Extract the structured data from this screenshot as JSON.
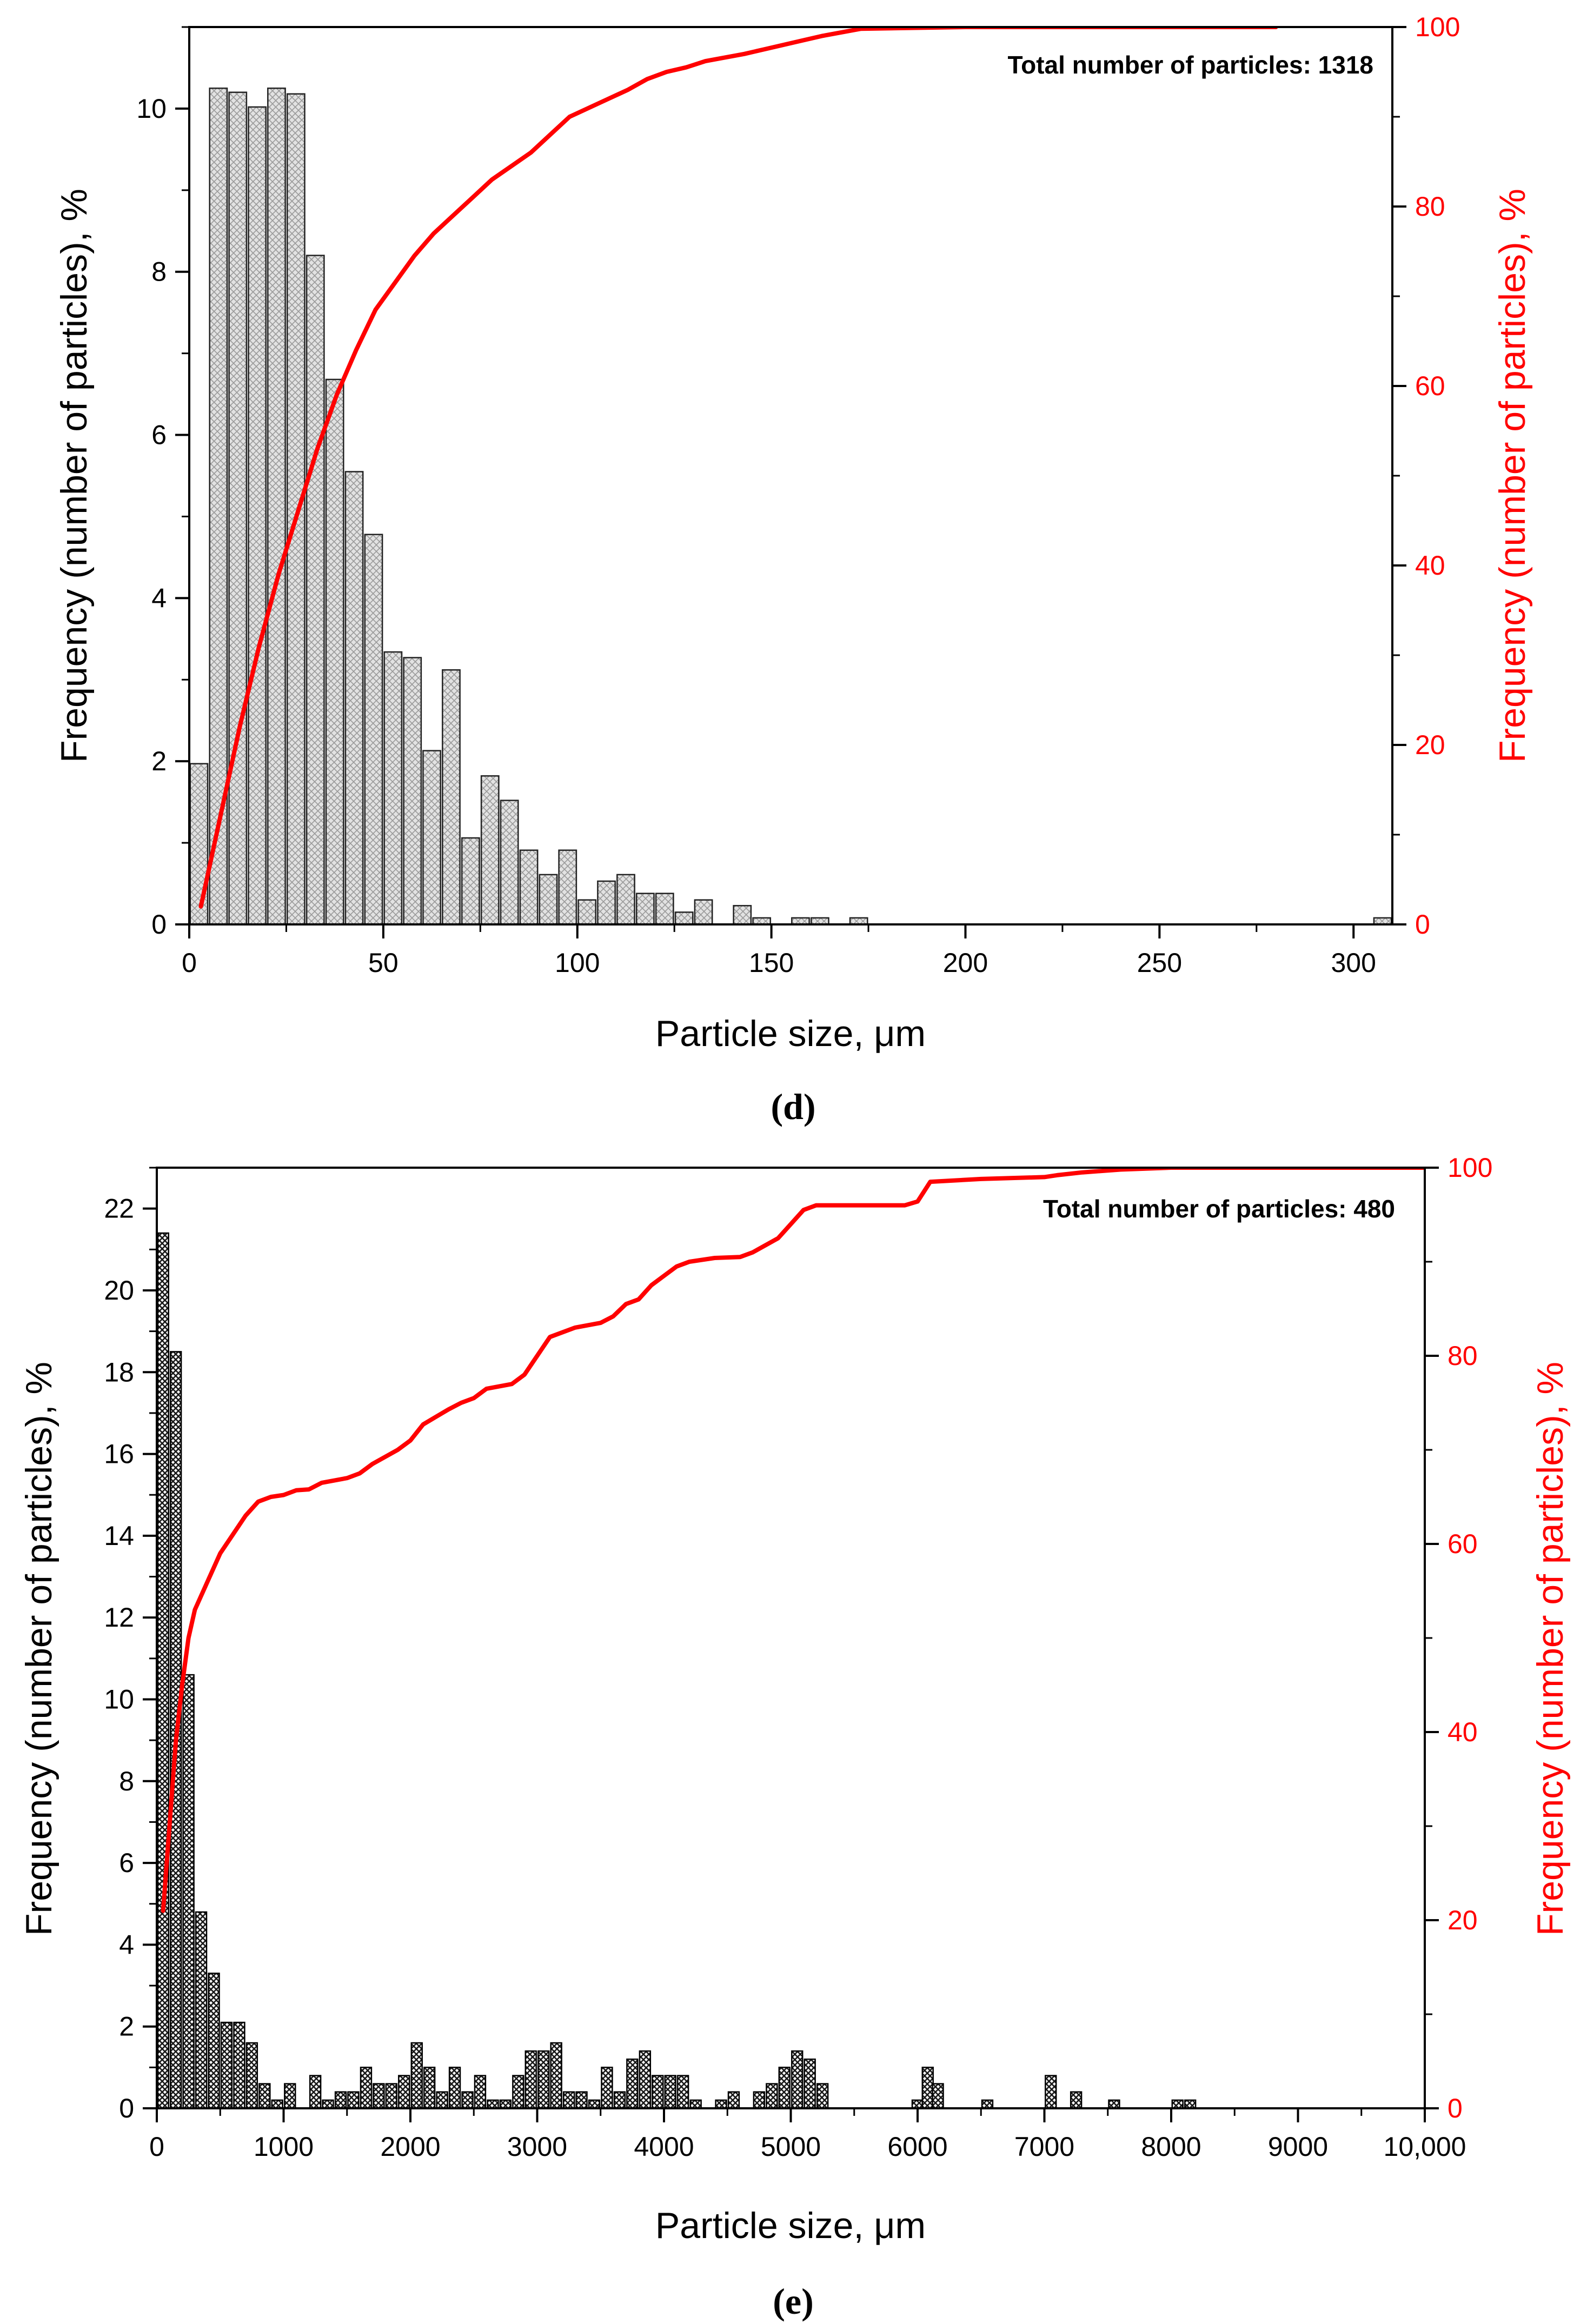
{
  "colors": {
    "cumulative": "#ff0000",
    "axis": "#000000",
    "bar_fill_d": "#d9d9d9",
    "bar_fill_e": "#6a6a6a"
  },
  "chart_data": [
    {
      "type": "bar",
      "panel_label": "(d)",
      "annotation": "Total number of particles: 1318",
      "xlabel": "Particle size, μm",
      "ylabel": "Frequency (number of particles), %",
      "y2label": "Frequency (number of particles), %",
      "xlim": [
        0,
        310
      ],
      "ylim": [
        0,
        11
      ],
      "y2lim": [
        0,
        100
      ],
      "xticks": [
        0,
        50,
        100,
        150,
        200,
        250,
        300
      ],
      "xtick_labels": [
        "0",
        "50",
        "100",
        "150",
        "200",
        "250",
        "300"
      ],
      "yticks": [
        0,
        2,
        4,
        6,
        8,
        10
      ],
      "ytick_labels": [
        "0",
        "2",
        "4",
        "6",
        "8",
        "10"
      ],
      "y2ticks": [
        0,
        20,
        40,
        60,
        80,
        100
      ],
      "y2tick_labels": [
        "0",
        "20",
        "40",
        "60",
        "80",
        "100"
      ],
      "bin_width": 4.5,
      "bins": [
        {
          "x": 2.5,
          "value": 1.97
        },
        {
          "x": 7.5,
          "value": 10.25
        },
        {
          "x": 12.5,
          "value": 10.2
        },
        {
          "x": 17.5,
          "value": 10.02
        },
        {
          "x": 22.5,
          "value": 10.25
        },
        {
          "x": 27.5,
          "value": 10.18
        },
        {
          "x": 32.5,
          "value": 8.2
        },
        {
          "x": 37.5,
          "value": 6.68
        },
        {
          "x": 42.5,
          "value": 5.55
        },
        {
          "x": 47.5,
          "value": 4.78
        },
        {
          "x": 52.5,
          "value": 3.34
        },
        {
          "x": 57.5,
          "value": 3.27
        },
        {
          "x": 62.5,
          "value": 2.13
        },
        {
          "x": 67.5,
          "value": 3.12
        },
        {
          "x": 72.5,
          "value": 1.06
        },
        {
          "x": 77.5,
          "value": 1.82
        },
        {
          "x": 82.5,
          "value": 1.52
        },
        {
          "x": 87.5,
          "value": 0.91
        },
        {
          "x": 92.5,
          "value": 0.61
        },
        {
          "x": 97.5,
          "value": 0.91
        },
        {
          "x": 102.5,
          "value": 0.3
        },
        {
          "x": 107.5,
          "value": 0.53
        },
        {
          "x": 112.5,
          "value": 0.61
        },
        {
          "x": 117.5,
          "value": 0.38
        },
        {
          "x": 122.5,
          "value": 0.38
        },
        {
          "x": 127.5,
          "value": 0.15
        },
        {
          "x": 132.5,
          "value": 0.3
        },
        {
          "x": 142.5,
          "value": 0.23
        },
        {
          "x": 147.5,
          "value": 0.08
        },
        {
          "x": 157.5,
          "value": 0.08
        },
        {
          "x": 162.5,
          "value": 0.08
        },
        {
          "x": 172.5,
          "value": 0.08
        },
        {
          "x": 307.5,
          "value": 0.08
        }
      ],
      "cumulative": {
        "x": [
          3,
          8,
          13,
          18,
          23,
          28,
          33,
          38,
          43,
          48,
          53,
          58,
          63,
          68,
          73,
          78,
          83,
          88,
          93,
          98,
          103,
          108,
          113,
          118,
          123,
          128,
          133,
          143,
          148,
          158,
          163,
          173,
          200,
          240,
          280
        ],
        "values": [
          2,
          12,
          22,
          31,
          39,
          46,
          53,
          59,
          64,
          68.5,
          71.5,
          74.5,
          77,
          79,
          81,
          83,
          84.5,
          86,
          88,
          90,
          91,
          92,
          93,
          94.2,
          95,
          95.5,
          96.2,
          97,
          97.5,
          98.5,
          99,
          99.8,
          100,
          100,
          100
        ]
      }
    },
    {
      "type": "bar",
      "panel_label": "(e)",
      "annotation": "Total number of particles: 480",
      "xlabel": "Particle size, μm",
      "ylabel": "Frequency (number of particles), %",
      "y2label": "Frequency (number of particles), %",
      "xlim": [
        0,
        10000
      ],
      "ylim": [
        0,
        23
      ],
      "y2lim": [
        0,
        100
      ],
      "xticks": [
        0,
        1000,
        2000,
        3000,
        4000,
        5000,
        6000,
        7000,
        8000,
        9000,
        10000
      ],
      "xtick_labels": [
        "0",
        "1000",
        "2000",
        "3000",
        "4000",
        "5000",
        "6000",
        "7000",
        "8000",
        "9000",
        "10,000"
      ],
      "yticks": [
        0,
        2,
        4,
        6,
        8,
        10,
        12,
        14,
        16,
        18,
        20,
        22
      ],
      "ytick_labels": [
        "0",
        "2",
        "4",
        "6",
        "8",
        "10",
        "12",
        "14",
        "16",
        "18",
        "20",
        "22"
      ],
      "y2ticks": [
        0,
        20,
        40,
        60,
        80,
        100
      ],
      "y2tick_labels": [
        "0",
        "20",
        "40",
        "60",
        "80",
        "100"
      ],
      "bin_width": 85,
      "bins": [
        {
          "x": 50,
          "value": 21.4
        },
        {
          "x": 150,
          "value": 18.5
        },
        {
          "x": 250,
          "value": 10.6
        },
        {
          "x": 350,
          "value": 4.8
        },
        {
          "x": 450,
          "value": 3.3
        },
        {
          "x": 550,
          "value": 2.1
        },
        {
          "x": 650,
          "value": 2.1
        },
        {
          "x": 750,
          "value": 1.6
        },
        {
          "x": 850,
          "value": 0.6
        },
        {
          "x": 950,
          "value": 0.2
        },
        {
          "x": 1050,
          "value": 0.6
        },
        {
          "x": 1250,
          "value": 0.8
        },
        {
          "x": 1350,
          "value": 0.2
        },
        {
          "x": 1450,
          "value": 0.4
        },
        {
          "x": 1550,
          "value": 0.4
        },
        {
          "x": 1650,
          "value": 1.0
        },
        {
          "x": 1750,
          "value": 0.6
        },
        {
          "x": 1850,
          "value": 0.6
        },
        {
          "x": 1950,
          "value": 0.8
        },
        {
          "x": 2050,
          "value": 1.6
        },
        {
          "x": 2150,
          "value": 1.0
        },
        {
          "x": 2250,
          "value": 0.4
        },
        {
          "x": 2350,
          "value": 1.0
        },
        {
          "x": 2450,
          "value": 0.4
        },
        {
          "x": 2550,
          "value": 0.8
        },
        {
          "x": 2650,
          "value": 0.2
        },
        {
          "x": 2750,
          "value": 0.2
        },
        {
          "x": 2850,
          "value": 0.8
        },
        {
          "x": 2950,
          "value": 1.4
        },
        {
          "x": 3050,
          "value": 1.4
        },
        {
          "x": 3150,
          "value": 1.6
        },
        {
          "x": 3250,
          "value": 0.4
        },
        {
          "x": 3350,
          "value": 0.4
        },
        {
          "x": 3450,
          "value": 0.2
        },
        {
          "x": 3550,
          "value": 1.0
        },
        {
          "x": 3650,
          "value": 0.4
        },
        {
          "x": 3750,
          "value": 1.2
        },
        {
          "x": 3850,
          "value": 1.4
        },
        {
          "x": 3950,
          "value": 0.8
        },
        {
          "x": 4050,
          "value": 0.8
        },
        {
          "x": 4150,
          "value": 0.8
        },
        {
          "x": 4250,
          "value": 0.2
        },
        {
          "x": 4450,
          "value": 0.2
        },
        {
          "x": 4550,
          "value": 0.4
        },
        {
          "x": 4750,
          "value": 0.4
        },
        {
          "x": 4850,
          "value": 0.6
        },
        {
          "x": 4950,
          "value": 1.0
        },
        {
          "x": 5050,
          "value": 1.4
        },
        {
          "x": 5150,
          "value": 1.2
        },
        {
          "x": 5250,
          "value": 0.6
        },
        {
          "x": 6000,
          "value": 0.2
        },
        {
          "x": 6080,
          "value": 1.0
        },
        {
          "x": 6160,
          "value": 0.6
        },
        {
          "x": 6550,
          "value": 0.2
        },
        {
          "x": 7050,
          "value": 0.8
        },
        {
          "x": 7250,
          "value": 0.4
        },
        {
          "x": 7550,
          "value": 0.2
        },
        {
          "x": 8050,
          "value": 0.2
        },
        {
          "x": 8150,
          "value": 0.2
        }
      ],
      "cumulative": {
        "x": [
          50,
          100,
          150,
          200,
          250,
          300,
          400,
          500,
          600,
          700,
          800,
          900,
          1000,
          1100,
          1200,
          1300,
          1500,
          1600,
          1700,
          1900,
          2000,
          2100,
          2200,
          2300,
          2400,
          2500,
          2600,
          2800,
          2900,
          3000,
          3100,
          3300,
          3500,
          3600,
          3700,
          3800,
          3900,
          4000,
          4100,
          4200,
          4400,
          4600,
          4700,
          4900,
          5000,
          5100,
          5200,
          5500,
          5900,
          6000,
          6100,
          6500,
          7000,
          7100,
          7300,
          7600,
          8000,
          8200,
          9000,
          10000
        ],
        "values": [
          21,
          30,
          39,
          45,
          50,
          53,
          56,
          59,
          61,
          63,
          64.5,
          65,
          65.2,
          65.7,
          65.8,
          66.5,
          67,
          67.5,
          68.5,
          70,
          71,
          72.7,
          73.5,
          74.3,
          75,
          75.5,
          76.5,
          77,
          78,
          80,
          82,
          83,
          83.5,
          84.2,
          85.5,
          86,
          87.5,
          88.5,
          89.5,
          90,
          90.4,
          90.5,
          91,
          92.5,
          94,
          95.5,
          96,
          96,
          96,
          96.4,
          98.5,
          98.8,
          99,
          99.2,
          99.5,
          99.8,
          100,
          100,
          100,
          100
        ]
      }
    }
  ]
}
